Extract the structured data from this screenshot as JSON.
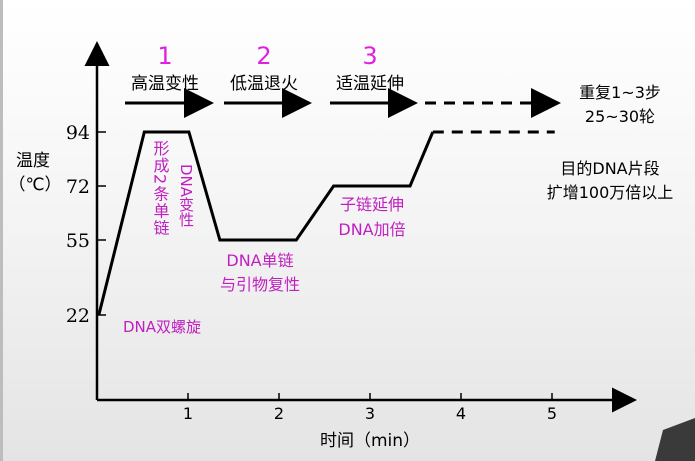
{
  "chart_data": {
    "type": "line",
    "ylabel": [
      "温度",
      "（℃）"
    ],
    "xlabel": "时间（min）",
    "x_ticks": [
      1,
      2,
      3,
      4,
      5
    ],
    "y_ticks": [
      94,
      72,
      55,
      22
    ],
    "series": [
      {
        "style": "solid",
        "points": [
          [
            0.02,
            22
          ],
          [
            0.52,
            94
          ],
          [
            1.01,
            94
          ],
          [
            1.35,
            55
          ],
          [
            2.19,
            55
          ],
          [
            2.6,
            72
          ],
          [
            3.44,
            72
          ],
          [
            3.69,
            94
          ]
        ]
      },
      {
        "style": "dashed",
        "points": [
          [
            3.69,
            94
          ],
          [
            5.03,
            94
          ]
        ]
      }
    ],
    "steps": [
      {
        "number": "1",
        "label": "高温变性"
      },
      {
        "number": "2",
        "label": "低温退火"
      },
      {
        "number": "3",
        "label": "适温延伸"
      }
    ],
    "repeat_note": [
      "重复1~3步",
      "25~30轮"
    ],
    "result_note": [
      "目的DNA片段",
      "扩增100万倍以上"
    ],
    "annotations": {
      "double_helix": "DNA双螺旋",
      "single_strands_vertical": "形成2条单链",
      "denature_vertical": "DNA变性",
      "anneal": [
        "DNA单链",
        "与引物复性"
      ],
      "extend": [
        "子链延伸",
        "DNA加倍"
      ]
    },
    "colors": {
      "line": "#000000",
      "step_number": "#e020e0",
      "annotation": "#c020c0"
    }
  }
}
